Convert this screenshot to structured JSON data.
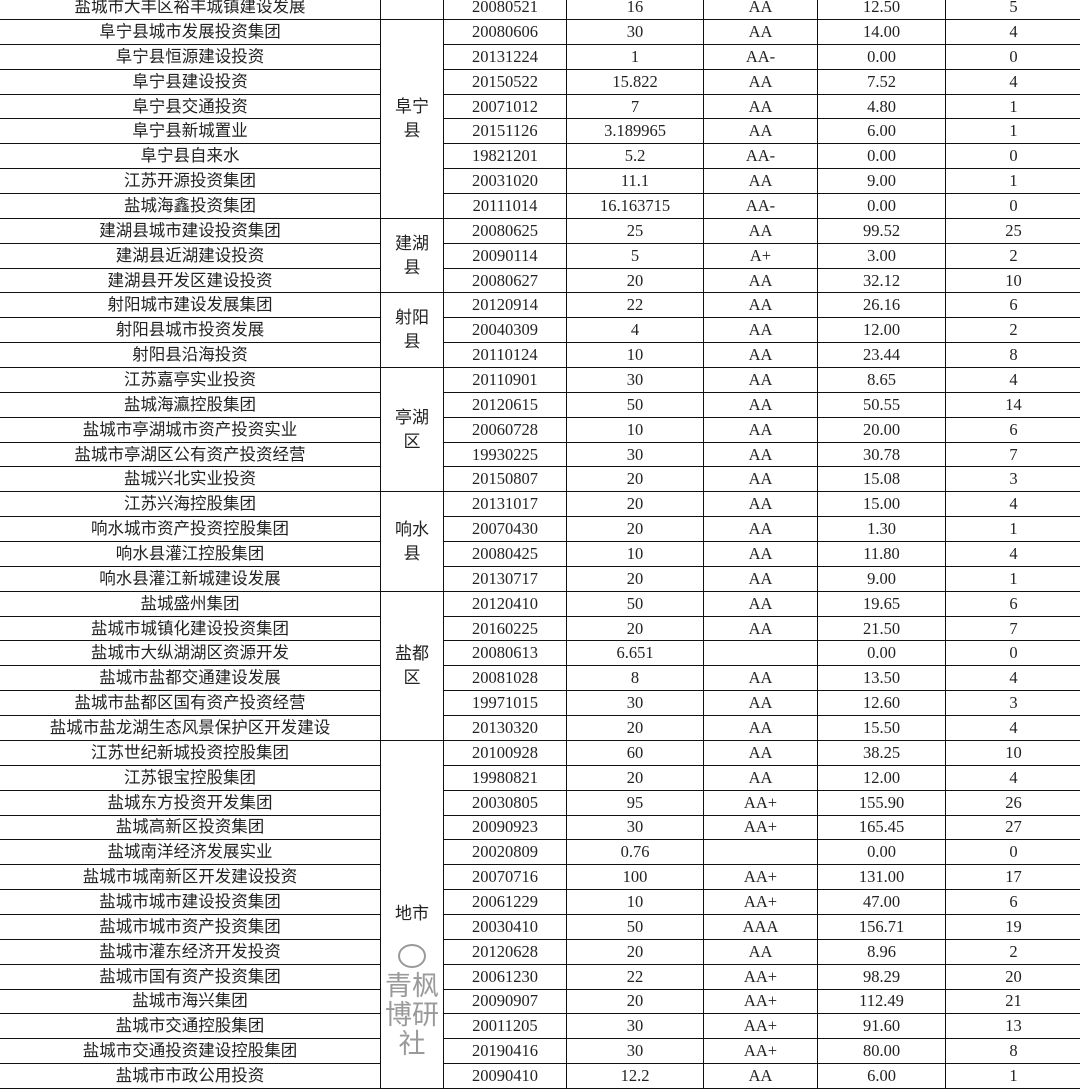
{
  "rows": [
    {
      "name": "盐城市大丰区裕丰城镇建设发展",
      "date": "20080521",
      "capital": "16",
      "rating": "AA",
      "amount": "12.50",
      "count": "5"
    },
    {
      "name": "阜宁县城市发展投资集团",
      "date": "20080606",
      "capital": "30",
      "rating": "AA",
      "amount": "14.00",
      "count": "4"
    },
    {
      "name": "阜宁县恒源建设投资",
      "date": "20131224",
      "capital": "1",
      "rating": "AA-",
      "amount": "0.00",
      "count": "0"
    },
    {
      "name": "阜宁县建设投资",
      "date": "20150522",
      "capital": "15.822",
      "rating": "AA",
      "amount": "7.52",
      "count": "4"
    },
    {
      "name": "阜宁县交通投资",
      "date": "20071012",
      "capital": "7",
      "rating": "AA",
      "amount": "4.80",
      "count": "1"
    },
    {
      "name": "阜宁县新城置业",
      "date": "20151126",
      "capital": "3.189965",
      "rating": "AA",
      "amount": "6.00",
      "count": "1"
    },
    {
      "name": "阜宁县自来水",
      "date": "19821201",
      "capital": "5.2",
      "rating": "AA-",
      "amount": "0.00",
      "count": "0"
    },
    {
      "name": "江苏开源投资集团",
      "date": "20031020",
      "capital": "11.1",
      "rating": "AA",
      "amount": "9.00",
      "count": "1"
    },
    {
      "name": "盐城海鑫投资集团",
      "date": "20111014",
      "capital": "16.163715",
      "rating": "AA-",
      "amount": "0.00",
      "count": "0"
    },
    {
      "name": "建湖县城市建设投资集团",
      "date": "20080625",
      "capital": "25",
      "rating": "AA",
      "amount": "99.52",
      "count": "25"
    },
    {
      "name": "建湖县近湖建设投资",
      "date": "20090114",
      "capital": "5",
      "rating": "A+",
      "amount": "3.00",
      "count": "2"
    },
    {
      "name": "建湖县开发区建设投资",
      "date": "20080627",
      "capital": "20",
      "rating": "AA",
      "amount": "32.12",
      "count": "10"
    },
    {
      "name": "射阳城市建设发展集团",
      "date": "20120914",
      "capital": "22",
      "rating": "AA",
      "amount": "26.16",
      "count": "6"
    },
    {
      "name": "射阳县城市投资发展",
      "date": "20040309",
      "capital": "4",
      "rating": "AA",
      "amount": "12.00",
      "count": "2"
    },
    {
      "name": "射阳县沿海投资",
      "date": "20110124",
      "capital": "10",
      "rating": "AA",
      "amount": "23.44",
      "count": "8"
    },
    {
      "name": "江苏嘉亭实业投资",
      "date": "20110901",
      "capital": "30",
      "rating": "AA",
      "amount": "8.65",
      "count": "4"
    },
    {
      "name": "盐城海瀛控股集团",
      "date": "20120615",
      "capital": "50",
      "rating": "AA",
      "amount": "50.55",
      "count": "14"
    },
    {
      "name": "盐城市亭湖城市资产投资实业",
      "date": "20060728",
      "capital": "10",
      "rating": "AA",
      "amount": "20.00",
      "count": "6"
    },
    {
      "name": "盐城市亭湖区公有资产投资经营",
      "date": "19930225",
      "capital": "30",
      "rating": "AA",
      "amount": "30.78",
      "count": "7"
    },
    {
      "name": "盐城兴北实业投资",
      "date": "20150807",
      "capital": "20",
      "rating": "AA",
      "amount": "15.08",
      "count": "3"
    },
    {
      "name": "江苏兴海控股集团",
      "date": "20131017",
      "capital": "20",
      "rating": "AA",
      "amount": "15.00",
      "count": "4"
    },
    {
      "name": "响水城市资产投资控股集团",
      "date": "20070430",
      "capital": "20",
      "rating": "AA",
      "amount": "1.30",
      "count": "1"
    },
    {
      "name": "响水县灌江控股集团",
      "date": "20080425",
      "capital": "10",
      "rating": "AA",
      "amount": "11.80",
      "count": "4"
    },
    {
      "name": "响水县灌江新城建设发展",
      "date": "20130717",
      "capital": "20",
      "rating": "AA",
      "amount": "9.00",
      "count": "1"
    },
    {
      "name": "盐城盛州集团",
      "date": "20120410",
      "capital": "50",
      "rating": "AA",
      "amount": "19.65",
      "count": "6"
    },
    {
      "name": "盐城市城镇化建设投资集团",
      "date": "20160225",
      "capital": "20",
      "rating": "AA",
      "amount": "21.50",
      "count": "7"
    },
    {
      "name": "盐城市大纵湖湖区资源开发",
      "date": "20080613",
      "capital": "6.651",
      "rating": "",
      "amount": "0.00",
      "count": "0"
    },
    {
      "name": "盐城市盐都交通建设发展",
      "date": "20081028",
      "capital": "8",
      "rating": "AA",
      "amount": "13.50",
      "count": "4"
    },
    {
      "name": "盐城市盐都区国有资产投资经营",
      "date": "19971015",
      "capital": "30",
      "rating": "AA",
      "amount": "12.60",
      "count": "3"
    },
    {
      "name": "盐城市盐龙湖生态风景保护区开发建设",
      "date": "20130320",
      "capital": "20",
      "rating": "AA",
      "amount": "15.50",
      "count": "4"
    },
    {
      "name": "江苏世纪新城投资控股集团",
      "date": "20100928",
      "capital": "60",
      "rating": "AA",
      "amount": "38.25",
      "count": "10"
    },
    {
      "name": "江苏银宝控股集团",
      "date": "19980821",
      "capital": "20",
      "rating": "AA",
      "amount": "12.00",
      "count": "4"
    },
    {
      "name": "盐城东方投资开发集团",
      "date": "20030805",
      "capital": "95",
      "rating": "AA+",
      "amount": "155.90",
      "count": "26"
    },
    {
      "name": "盐城高新区投资集团",
      "date": "20090923",
      "capital": "30",
      "rating": "AA+",
      "amount": "165.45",
      "count": "27"
    },
    {
      "name": "盐城南洋经济发展实业",
      "date": "20020809",
      "capital": "0.76",
      "rating": "",
      "amount": "0.00",
      "count": "0"
    },
    {
      "name": "盐城市城南新区开发建设投资",
      "date": "20070716",
      "capital": "100",
      "rating": "AA+",
      "amount": "131.00",
      "count": "17"
    },
    {
      "name": "盐城市城市建设投资集团",
      "date": "20061229",
      "capital": "10",
      "rating": "AA+",
      "amount": "47.00",
      "count": "6"
    },
    {
      "name": "盐城市城市资产投资集团",
      "date": "20030410",
      "capital": "50",
      "rating": "AAA",
      "amount": "156.71",
      "count": "19"
    },
    {
      "name": "盐城市灌东经济开发投资",
      "date": "20120628",
      "capital": "20",
      "rating": "AA",
      "amount": "8.96",
      "count": "2"
    },
    {
      "name": "盐城市国有资产投资集团",
      "date": "20061230",
      "capital": "22",
      "rating": "AA+",
      "amount": "98.29",
      "count": "20"
    },
    {
      "name": "盐城市海兴集团",
      "date": "20090907",
      "capital": "20",
      "rating": "AA+",
      "amount": "112.49",
      "count": "21"
    },
    {
      "name": "盐城市交通控股集团",
      "date": "20011205",
      "capital": "30",
      "rating": "AA+",
      "amount": "91.60",
      "count": "13"
    },
    {
      "name": "盐城市交通投资建设控股集团",
      "date": "20190416",
      "capital": "30",
      "rating": "AA+",
      "amount": "80.00",
      "count": "8"
    },
    {
      "name": "盐城市市政公用投资",
      "date": "20090410",
      "capital": "12.2",
      "rating": "AA",
      "amount": "6.00",
      "count": "1"
    }
  ],
  "regions": [
    {
      "label": "",
      "start": 0,
      "span": 1
    },
    {
      "label": "阜宁县",
      "start": 1,
      "span": 8
    },
    {
      "label": "建湖县",
      "start": 9,
      "span": 3
    },
    {
      "label": "射阳县",
      "start": 12,
      "span": 3
    },
    {
      "label": "亭湖区",
      "start": 15,
      "span": 5
    },
    {
      "label": "响水县",
      "start": 20,
      "span": 4
    },
    {
      "label": "盐都区",
      "start": 24,
      "span": 6
    },
    {
      "label": "地市",
      "start": 30,
      "span": 14
    }
  ],
  "watermark": "青枫博研社"
}
